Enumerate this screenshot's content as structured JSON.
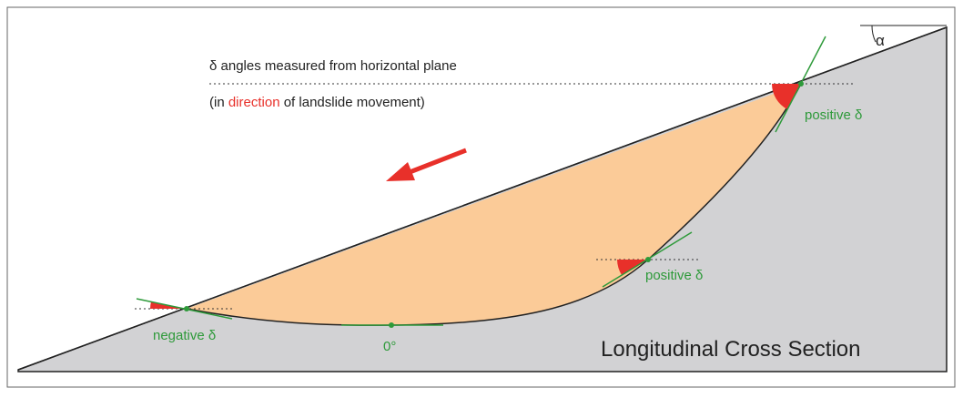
{
  "header": {
    "line1": "δ angles measured from horizontal plane",
    "line2": [
      "(in ",
      "direction",
      " of landslide movement)"
    ]
  },
  "labels": {
    "alpha": "α",
    "positive_top": "positive δ",
    "positive_mid": "positive δ",
    "negative": "negative δ",
    "zero": "0°",
    "section": "Longitudinal Cross Section"
  }
}
